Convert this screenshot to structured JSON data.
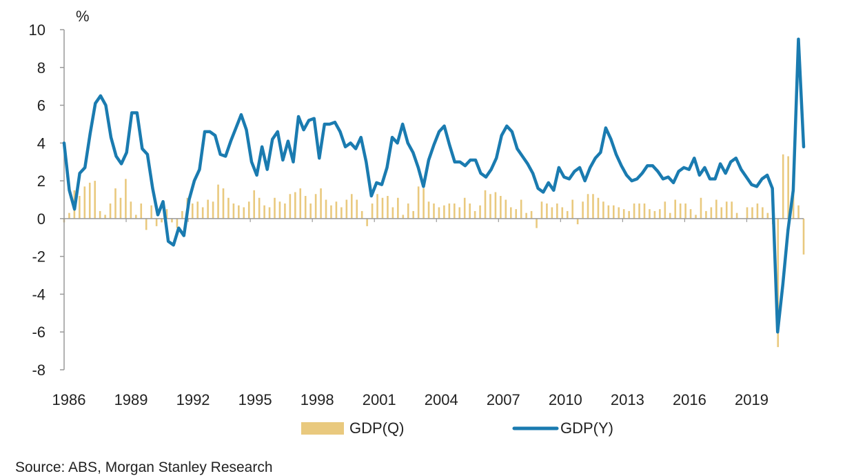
{
  "chart_data": {
    "type": "bar+line",
    "unit_label": "%",
    "ylim": [
      -8,
      10
    ],
    "yticks": [
      10,
      8,
      6,
      4,
      2,
      0,
      -2,
      -4,
      -6,
      -8
    ],
    "xlim": [
      1986,
      2021.75
    ],
    "xticks": [
      "1986",
      "1989",
      "1992",
      "1995",
      "1998",
      "2001",
      "2004",
      "2007",
      "2010",
      "2013",
      "2016",
      "2019"
    ],
    "grid": false,
    "legend": "bottom",
    "colors": {
      "bar": "#E9C97E",
      "line": "#1A7BB0",
      "axis": "#999999"
    },
    "series": [
      {
        "name": "GDP(Q)",
        "kind": "bar",
        "values": [
          -0.2,
          0.3,
          1.5,
          1.2,
          1.7,
          1.9,
          2.0,
          0.4,
          0.2,
          0.8,
          1.6,
          1.1,
          2.1,
          0.9,
          0.2,
          0.8,
          -0.6,
          0.7,
          -0.4,
          -0.2,
          0.5,
          -0.2,
          -0.5,
          0.4,
          1.1,
          0.8,
          0.9,
          0.6,
          1.0,
          0.9,
          1.8,
          1.6,
          1.1,
          0.8,
          0.7,
          0.6,
          0.9,
          1.5,
          1.1,
          0.7,
          0.6,
          1.1,
          0.9,
          0.8,
          1.3,
          1.4,
          1.6,
          1.2,
          0.8,
          1.3,
          1.6,
          1.0,
          0.7,
          0.9,
          0.6,
          1.0,
          1.3,
          1.0,
          0.4,
          -0.4,
          0.8,
          1.3,
          1.1,
          1.2,
          0.6,
          1.1,
          0.2,
          0.8,
          0.4,
          1.7,
          1.6,
          0.9,
          0.8,
          0.6,
          0.7,
          0.8,
          0.8,
          0.6,
          1.1,
          0.8,
          0.4,
          0.7,
          1.5,
          1.3,
          1.4,
          1.2,
          1.0,
          0.6,
          0.5,
          1.0,
          0.3,
          0.4,
          -0.5,
          0.9,
          0.8,
          0.6,
          0.8,
          0.6,
          0.4,
          1.0,
          -0.3,
          0.9,
          1.3,
          1.3,
          1.1,
          0.9,
          0.7,
          0.7,
          0.6,
          0.5,
          0.4,
          0.8,
          0.8,
          0.8,
          0.5,
          0.4,
          0.5,
          0.9,
          0.3,
          1.0,
          0.8,
          0.8,
          0.5,
          0.2,
          1.1,
          0.4,
          0.6,
          1.0,
          0.6,
          0.9,
          0.9,
          0.3,
          0.0,
          0.6,
          0.6,
          0.8,
          0.6,
          0.3,
          -0.3,
          -6.8,
          3.4,
          3.3,
          1.8,
          0.7,
          -1.9
        ]
      },
      {
        "name": "GDP(Y)",
        "kind": "line",
        "values": [
          4.0,
          1.5,
          0.5,
          2.4,
          2.7,
          4.5,
          6.1,
          6.5,
          6.0,
          4.3,
          3.3,
          2.9,
          3.5,
          5.6,
          5.6,
          3.7,
          3.4,
          1.6,
          0.2,
          0.9,
          -1.2,
          -1.4,
          -0.5,
          -0.9,
          1.0,
          2.0,
          2.6,
          4.6,
          4.6,
          4.4,
          3.4,
          3.3,
          4.1,
          4.8,
          5.5,
          4.7,
          3.0,
          2.3,
          3.8,
          2.6,
          4.2,
          4.6,
          3.1,
          4.1,
          3.0,
          5.4,
          4.7,
          5.2,
          5.3,
          3.2,
          5.0,
          5.0,
          5.1,
          4.6,
          3.8,
          4.0,
          3.7,
          4.3,
          3.0,
          1.2,
          1.9,
          1.8,
          2.7,
          4.3,
          4.0,
          5.0,
          4.0,
          3.5,
          2.7,
          1.7,
          3.1,
          3.9,
          4.6,
          4.9,
          3.9,
          3.0,
          3.0,
          2.8,
          3.1,
          3.1,
          2.4,
          2.2,
          2.6,
          3.2,
          4.4,
          4.9,
          4.6,
          3.7,
          3.3,
          2.9,
          2.4,
          1.6,
          1.4,
          1.9,
          1.5,
          2.7,
          2.2,
          2.1,
          2.5,
          2.7,
          2.0,
          2.7,
          3.2,
          3.5,
          4.8,
          4.2,
          3.4,
          2.8,
          2.3,
          2.0,
          2.1,
          2.4,
          2.8,
          2.8,
          2.5,
          2.1,
          2.2,
          1.9,
          2.5,
          2.7,
          2.6,
          3.2,
          2.3,
          2.7,
          2.1,
          2.1,
          2.9,
          2.4,
          3.0,
          3.2,
          2.6,
          2.2,
          1.8,
          1.7,
          2.1,
          2.3,
          1.6,
          -6.0,
          -3.5,
          -0.6,
          1.5,
          9.5,
          3.8
        ]
      }
    ]
  },
  "source_text": "Source: ABS, Morgan Stanley Research"
}
